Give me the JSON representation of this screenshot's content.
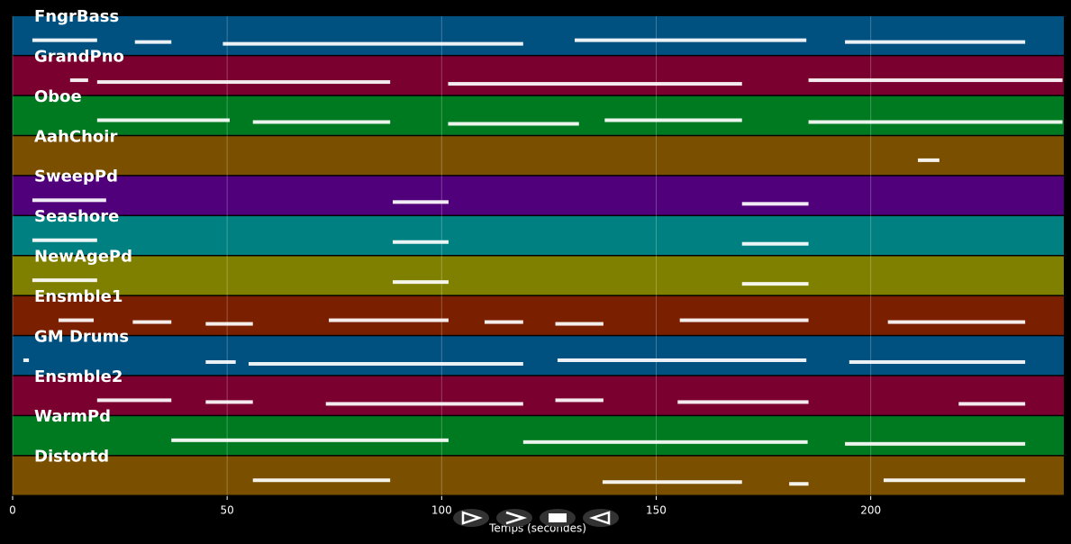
{
  "chart_data": {
    "type": "timeline",
    "xlabel": "Temps (secondes)",
    "xlim": [
      0,
      245
    ],
    "xticks": [
      0,
      50,
      100,
      150,
      200
    ],
    "grid": true,
    "tracks": [
      {
        "name": "FngrBass",
        "color": "#005080",
        "segments": [
          [
            4.6,
            19.7
          ],
          [
            28.5,
            37
          ],
          [
            49,
            119
          ],
          [
            131,
            185
          ],
          [
            194,
            236
          ]
        ]
      },
      {
        "name": "GrandPno",
        "color": "#7a0030",
        "segments": [
          [
            13.4,
            17.6
          ],
          [
            19.7,
            88
          ],
          [
            101.5,
            170
          ],
          [
            185.5,
            244.7
          ]
        ]
      },
      {
        "name": "Oboe",
        "color": "#007a20",
        "segments": [
          [
            19.7,
            50.6
          ],
          [
            56,
            88
          ],
          [
            101.5,
            132
          ],
          [
            138,
            170
          ],
          [
            185.5,
            244.7
          ]
        ]
      },
      {
        "name": "AahChoir",
        "color": "#7a5000",
        "segments": [
          [
            211,
            216
          ]
        ]
      },
      {
        "name": "SweepPd",
        "color": "#50007a",
        "segments": [
          [
            4.6,
            21.8
          ],
          [
            88.6,
            101.6
          ],
          [
            170,
            185.5
          ]
        ]
      },
      {
        "name": "Seashore",
        "color": "#008080",
        "segments": [
          [
            4.6,
            19.7
          ],
          [
            88.6,
            101.6
          ],
          [
            170,
            185.5
          ]
        ]
      },
      {
        "name": "NewAgePd",
        "color": "#808000",
        "segments": [
          [
            4.6,
            19.7
          ],
          [
            88.6,
            101.6
          ],
          [
            170,
            185.5
          ]
        ]
      },
      {
        "name": "Ensmble1",
        "color": "#7a2000",
        "segments": [
          [
            10.7,
            18.9
          ],
          [
            28,
            37
          ],
          [
            45,
            56
          ],
          [
            73.7,
            101.6
          ],
          [
            110,
            119
          ],
          [
            126.5,
            137.7
          ],
          [
            155.5,
            185.5
          ],
          [
            204,
            236
          ]
        ]
      },
      {
        "name": "GM Drums",
        "color": "#005080",
        "segments": [
          [
            2.5,
            3.8
          ],
          [
            45,
            52
          ],
          [
            55,
            119
          ],
          [
            127,
            185
          ],
          [
            195,
            236
          ]
        ]
      },
      {
        "name": "Ensmble2",
        "color": "#7a0030",
        "segments": [
          [
            19.7,
            37
          ],
          [
            45,
            56
          ],
          [
            73,
            119
          ],
          [
            126.5,
            137.7
          ],
          [
            155,
            185.5
          ],
          [
            220.5,
            236
          ]
        ]
      },
      {
        "name": "WarmPd",
        "color": "#007a20",
        "segments": [
          [
            37,
            101.6
          ],
          [
            119,
            185.3
          ],
          [
            194,
            236
          ]
        ]
      },
      {
        "name": "Distortd",
        "color": "#7a5000",
        "segments": [
          [
            56,
            88
          ],
          [
            137.5,
            170
          ],
          [
            181,
            185.5
          ],
          [
            203,
            236
          ]
        ]
      }
    ]
  }
}
